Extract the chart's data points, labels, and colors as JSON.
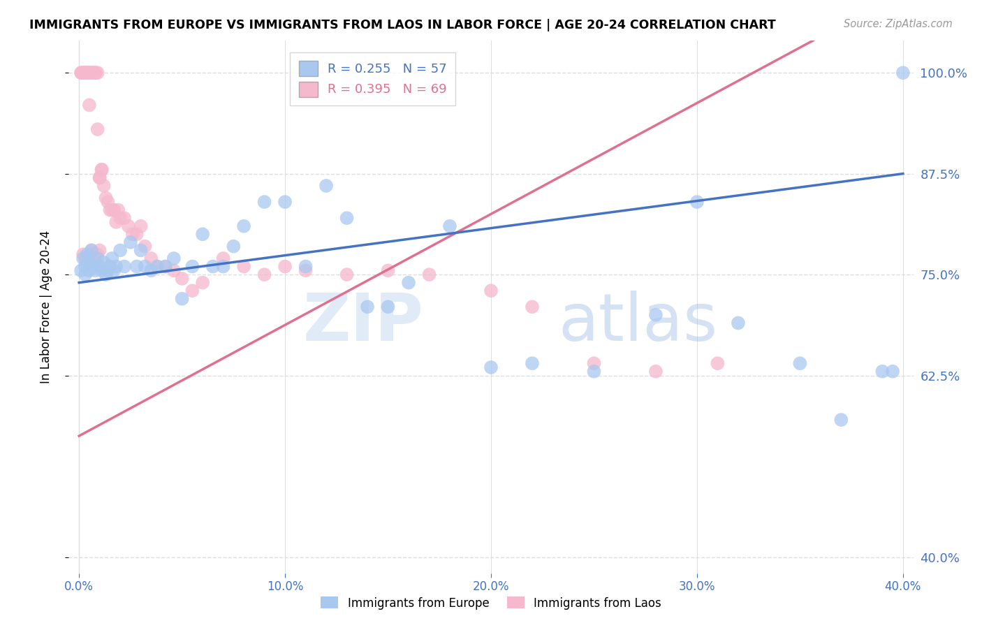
{
  "title": "IMMIGRANTS FROM EUROPE VS IMMIGRANTS FROM LAOS IN LABOR FORCE | AGE 20-24 CORRELATION CHART",
  "source": "Source: ZipAtlas.com",
  "ylabel": "In Labor Force | Age 20-24",
  "y_ticks": [
    0.4,
    0.625,
    0.75,
    0.875,
    1.0
  ],
  "y_tick_labels": [
    "40.0%",
    "62.5%",
    "75.0%",
    "87.5%",
    "100.0%"
  ],
  "x_ticks": [
    0.0,
    0.1,
    0.2,
    0.3,
    0.4
  ],
  "x_tick_labels": [
    "0.0%",
    "10.0%",
    "20.0%",
    "30.0%",
    "40.0%"
  ],
  "xlim": [
    -0.005,
    0.405
  ],
  "ylim": [
    0.38,
    1.04
  ],
  "europe_color": "#a8c8f0",
  "laos_color": "#f5b8cc",
  "europe_line_color": "#4472c4",
  "laos_line_color": "#e07090",
  "europe_R": 0.255,
  "europe_N": 57,
  "laos_R": 0.395,
  "laos_N": 69,
  "watermark_zip": "ZIP",
  "watermark_atlas": "atlas",
  "background_color": "#ffffff",
  "grid_color": "#dddddd",
  "europe_x": [
    0.001,
    0.002,
    0.003,
    0.003,
    0.004,
    0.005,
    0.005,
    0.006,
    0.007,
    0.008,
    0.009,
    0.01,
    0.011,
    0.012,
    0.013,
    0.014,
    0.015,
    0.016,
    0.017,
    0.018,
    0.02,
    0.022,
    0.025,
    0.028,
    0.03,
    0.032,
    0.035,
    0.038,
    0.042,
    0.046,
    0.05,
    0.055,
    0.06,
    0.065,
    0.07,
    0.075,
    0.08,
    0.09,
    0.1,
    0.11,
    0.12,
    0.13,
    0.14,
    0.15,
    0.16,
    0.18,
    0.2,
    0.22,
    0.25,
    0.28,
    0.3,
    0.32,
    0.35,
    0.37,
    0.39,
    0.395,
    0.4
  ],
  "europe_y": [
    0.755,
    0.77,
    0.76,
    0.75,
    0.775,
    0.765,
    0.755,
    0.78,
    0.76,
    0.755,
    0.77,
    0.76,
    0.755,
    0.765,
    0.75,
    0.755,
    0.76,
    0.77,
    0.755,
    0.76,
    0.78,
    0.76,
    0.79,
    0.76,
    0.78,
    0.76,
    0.755,
    0.76,
    0.76,
    0.77,
    0.72,
    0.76,
    0.8,
    0.76,
    0.76,
    0.785,
    0.81,
    0.84,
    0.84,
    0.76,
    0.86,
    0.82,
    0.71,
    0.71,
    0.74,
    0.81,
    0.635,
    0.64,
    0.63,
    0.7,
    0.84,
    0.69,
    0.64,
    0.57,
    0.63,
    0.63,
    1.0
  ],
  "laos_x": [
    0.001,
    0.001,
    0.002,
    0.002,
    0.003,
    0.003,
    0.003,
    0.004,
    0.004,
    0.004,
    0.005,
    0.005,
    0.005,
    0.006,
    0.006,
    0.007,
    0.007,
    0.008,
    0.008,
    0.009,
    0.009,
    0.01,
    0.01,
    0.011,
    0.011,
    0.012,
    0.013,
    0.014,
    0.015,
    0.016,
    0.017,
    0.018,
    0.019,
    0.02,
    0.022,
    0.024,
    0.026,
    0.028,
    0.03,
    0.032,
    0.035,
    0.038,
    0.042,
    0.046,
    0.05,
    0.055,
    0.06,
    0.07,
    0.08,
    0.09,
    0.1,
    0.11,
    0.13,
    0.15,
    0.17,
    0.2,
    0.22,
    0.25,
    0.28,
    0.31,
    0.002,
    0.003,
    0.004,
    0.005,
    0.006,
    0.007,
    0.008,
    0.009,
    0.01
  ],
  "laos_y": [
    1.0,
    1.0,
    1.0,
    1.0,
    1.0,
    1.0,
    1.0,
    1.0,
    1.0,
    1.0,
    1.0,
    1.0,
    0.96,
    1.0,
    1.0,
    1.0,
    1.0,
    1.0,
    1.0,
    1.0,
    0.93,
    0.87,
    0.87,
    0.88,
    0.88,
    0.86,
    0.845,
    0.84,
    0.83,
    0.83,
    0.83,
    0.815,
    0.83,
    0.82,
    0.82,
    0.81,
    0.8,
    0.8,
    0.81,
    0.785,
    0.77,
    0.76,
    0.76,
    0.755,
    0.745,
    0.73,
    0.74,
    0.77,
    0.76,
    0.75,
    0.76,
    0.755,
    0.75,
    0.755,
    0.75,
    0.73,
    0.71,
    0.64,
    0.63,
    0.64,
    0.775,
    0.77,
    0.77,
    0.77,
    0.78,
    0.775,
    0.775,
    0.775,
    0.78
  ]
}
